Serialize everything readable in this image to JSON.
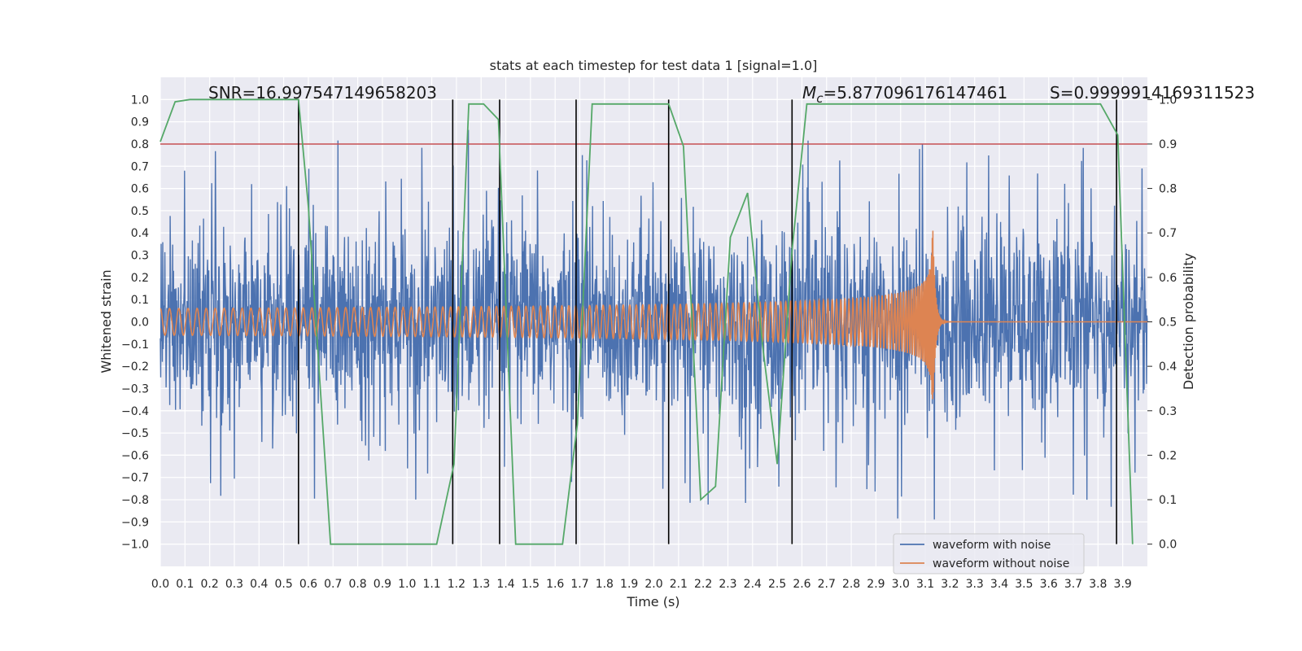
{
  "chart_data": {
    "type": "line",
    "title": "stats at each timestep for test data 1 [signal=1.0]",
    "xlabel": "Time (s)",
    "ylabel": "Whitened strain",
    "ylabel_right": "Detection probability",
    "xlim": [
      0.0,
      4.0
    ],
    "ylim": [
      -1.1,
      1.1
    ],
    "ylim_right": [
      -0.05,
      1.05
    ],
    "x_ticks": [
      "0.0",
      "0.1",
      "0.2",
      "0.3",
      "0.4",
      "0.5",
      "0.6",
      "0.7",
      "0.8",
      "0.9",
      "1.0",
      "1.1",
      "1.2",
      "1.3",
      "1.4",
      "1.5",
      "1.6",
      "1.7",
      "1.8",
      "1.9",
      "2.0",
      "2.1",
      "2.2",
      "2.3",
      "2.4",
      "2.5",
      "2.6",
      "2.7",
      "2.8",
      "2.9",
      "3.0",
      "3.1",
      "3.2",
      "3.3",
      "3.4",
      "3.5",
      "3.6",
      "3.7",
      "3.8",
      "3.9"
    ],
    "y_ticks": [
      "1.0",
      "0.9",
      "0.8",
      "0.7",
      "0.6",
      "0.5",
      "0.4",
      "0.3",
      "0.2",
      "0.1",
      "0.0",
      "−0.1",
      "−0.2",
      "−0.3",
      "−0.4",
      "−0.5",
      "−0.6",
      "−0.7",
      "−0.8",
      "−0.9",
      "−1.0"
    ],
    "y_right_ticks": [
      "1.0",
      "0.9",
      "0.8",
      "0.7",
      "0.6",
      "0.5",
      "0.4",
      "0.3",
      "0.2",
      "0.1",
      "0.0"
    ],
    "grid": true,
    "legend_position": "lower-right",
    "annotations": {
      "snr": "SNR=16.997547149658203",
      "mc_symbol": "M",
      "mc_sub": "c",
      "mc_value": "=5.877096176147461",
      "s": "S=0.9999914169311523"
    },
    "threshold": {
      "value": 0.9,
      "axis": "right",
      "color": "#c44e52"
    },
    "vertical_lines": [
      0.56,
      1.185,
      1.375,
      1.685,
      2.06,
      2.56,
      3.875
    ],
    "series": [
      {
        "name": "waveform with noise",
        "color": "#4c72b0",
        "axis": "left",
        "kind": "noise",
        "approx_amplitude": 0.35,
        "spike_max": 0.93,
        "spike_min": -0.99
      },
      {
        "name": "waveform without noise",
        "color": "#dd8452",
        "axis": "left",
        "kind": "chirp",
        "start_amplitude": 0.06,
        "peak_amplitude": 0.45,
        "merger_time": 3.13
      },
      {
        "color": "#55a868",
        "axis": "right",
        "kind": "probability",
        "x": [
          0.0,
          0.06,
          0.12,
          0.2,
          0.3,
          0.4,
          0.5,
          0.56,
          0.6,
          0.69,
          0.8,
          0.9,
          1.0,
          1.12,
          1.19,
          1.25,
          1.31,
          1.37,
          1.44,
          1.5,
          1.56,
          1.63,
          1.69,
          1.75,
          1.81,
          1.88,
          1.94,
          2.0,
          2.06,
          2.12,
          2.19,
          2.25,
          2.31,
          2.38,
          2.44,
          2.5,
          2.56,
          2.62,
          2.69,
          2.8,
          3.0,
          3.2,
          3.4,
          3.6,
          3.75,
          3.81,
          3.88,
          3.94
        ],
        "y": [
          0.905,
          0.995,
          1.0,
          1.0,
          1.0,
          1.0,
          1.0,
          1.0,
          0.76,
          0.0,
          0.0,
          0.0,
          0.0,
          0.0,
          0.18,
          0.99,
          0.99,
          0.955,
          0.0,
          0.0,
          0.0,
          0.0,
          0.27,
          0.99,
          0.99,
          0.99,
          0.99,
          0.99,
          0.99,
          0.895,
          0.1,
          0.13,
          0.69,
          0.79,
          0.45,
          0.18,
          0.66,
          0.99,
          0.99,
          0.99,
          0.99,
          0.99,
          0.99,
          0.99,
          0.99,
          0.99,
          0.92,
          0.0
        ]
      }
    ]
  }
}
